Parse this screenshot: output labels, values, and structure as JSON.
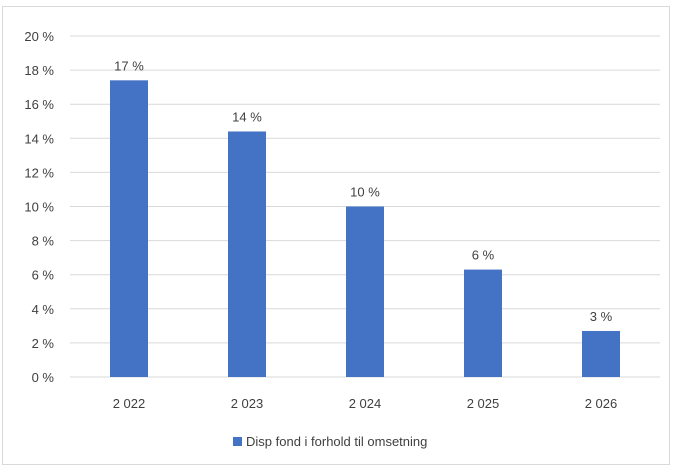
{
  "chart_data": {
    "type": "bar",
    "categories": [
      "2 022",
      "2 023",
      "2 024",
      "2 025",
      "2 026"
    ],
    "series": [
      {
        "name": "Disp fond i forhold til omsetning",
        "values": [
          17.4,
          14.4,
          10.0,
          6.3,
          2.7
        ],
        "labels": [
          "17 %",
          "14 %",
          "10 %",
          "6 %",
          "3 %"
        ]
      }
    ],
    "yticks": [
      "0 %",
      "2 %",
      "4 %",
      "6 %",
      "8 %",
      "10 %",
      "12 %",
      "14 %",
      "16 %",
      "18 %",
      "20 %"
    ],
    "ylim": [
      0,
      20
    ],
    "grid": true,
    "legend_position": "bottom",
    "colors": {
      "bar": "#4472c4",
      "grid": "#d9d9d9",
      "text": "#404040"
    }
  }
}
